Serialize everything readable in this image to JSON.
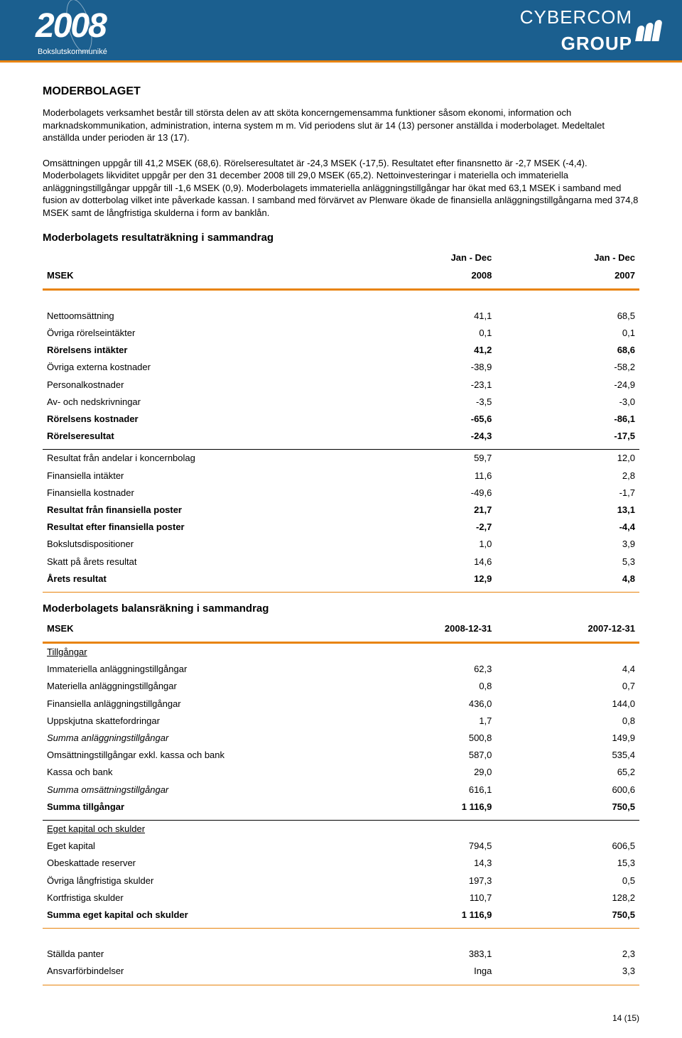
{
  "header": {
    "year": "20",
    "zero1": "0",
    "eight": "8",
    "subtitle": "Bokslutskommuniké",
    "company_a": "CYBERCOM",
    "company_b": "GROUP"
  },
  "colors": {
    "banner_bg": "#1b5f8f",
    "accent": "#e8830c",
    "text": "#000000",
    "white": "#ffffff"
  },
  "section_title": "MODERBOLAGET",
  "body_text": "Moderbolagets verksamhet består till största delen av att sköta koncerngemensamma funktioner såsom ekonomi, information och marknadskommunikation, administration, interna system m m. Vid periodens slut är 14 (13) personer anställda i moderbolaget. Medeltalet anställda under perioden är 13 (17).\n\nOmsättningen uppgår till 41,2 MSEK (68,6). Rörelseresultatet är -24,3 MSEK (-17,5). Resultatet efter finansnetto är -2,7 MSEK (-4,4). Moderbolagets likviditet uppgår per den 31 december 2008 till 29,0 MSEK (65,2). Nettoinvesteringar i materiella och immateriella anläggningstillgångar uppgår till -1,6 MSEK (0,9). Moderbolagets immateriella anläggningstillgångar har ökat med 63,1 MSEK i samband med fusion av dotterbolag vilket inte påverkade kassan. I samband med förvärvet av Plenware ökade de finansiella anläggningstillgångarna med 374,8 MSEK samt de långfristiga skulderna i form av banklån.",
  "income": {
    "title": "Moderbolagets resultaträkning i sammandrag",
    "col_unit": "MSEK",
    "period_label": "Jan - Dec",
    "col1": "2008",
    "col2": "2007",
    "rows": [
      {
        "label": "Nettoomsättning",
        "v1": "41,1",
        "v2": "68,5"
      },
      {
        "label": "Övriga rörelseintäkter",
        "v1": "0,1",
        "v2": "0,1"
      },
      {
        "label": "Rörelsens intäkter",
        "v1": "41,2",
        "v2": "68,6",
        "bold": true
      },
      {
        "label": "Övriga externa kostnader",
        "v1": "-38,9",
        "v2": "-58,2"
      },
      {
        "label": "Personalkostnader",
        "v1": "-23,1",
        "v2": "-24,9"
      },
      {
        "label": "Av- och nedskrivningar",
        "v1": "-3,5",
        "v2": "-3,0"
      },
      {
        "label": "Rörelsens kostnader",
        "v1": "-65,6",
        "v2": "-86,1",
        "bold": true
      },
      {
        "label": "Rörelseresultat",
        "v1": "-24,3",
        "v2": "-17,5",
        "bold": true,
        "rule_after": "black"
      },
      {
        "label": "Resultat från andelar i koncernbolag",
        "v1": "59,7",
        "v2": "12,0"
      },
      {
        "label": "Finansiella intäkter",
        "v1": "11,6",
        "v2": "2,8"
      },
      {
        "label": "Finansiella kostnader",
        "v1": "-49,6",
        "v2": "-1,7"
      },
      {
        "label": "Resultat från finansiella poster",
        "v1": "21,7",
        "v2": "13,1",
        "bold": true
      },
      {
        "label": "Resultat efter finansiella poster",
        "v1": "-2,7",
        "v2": "-4,4",
        "bold": true
      },
      {
        "label": "Bokslutsdispositioner",
        "v1": "1,0",
        "v2": "3,9"
      },
      {
        "label": "Skatt på årets resultat",
        "v1": "14,6",
        "v2": "5,3"
      },
      {
        "label": "Årets resultat",
        "v1": "12,9",
        "v2": "4,8",
        "bold": true
      }
    ]
  },
  "balance": {
    "title": "Moderbolagets balansräkning i sammandrag",
    "col_unit": "MSEK",
    "col1": "2008-12-31",
    "col2": "2007-12-31",
    "section1_label": "Tillgångar",
    "rows1": [
      {
        "label": "Immateriella anläggningstillgångar",
        "v1": "62,3",
        "v2": "4,4"
      },
      {
        "label": "Materiella anläggningstillgångar",
        "v1": "0,8",
        "v2": "0,7"
      },
      {
        "label": "Finansiella anläggningstillgångar",
        "v1": "436,0",
        "v2": "144,0"
      },
      {
        "label": "Uppskjutna skattefordringar",
        "v1": "1,7",
        "v2": "0,8"
      },
      {
        "label": "Summa anläggningstillgångar",
        "v1": "500,8",
        "v2": "149,9",
        "italic": true
      },
      {
        "label": "Omsättningstillgångar exkl. kassa och bank",
        "v1": "587,0",
        "v2": "535,4"
      },
      {
        "label": "Kassa och bank",
        "v1": "29,0",
        "v2": "65,2"
      },
      {
        "label": "Summa omsättningstillgångar",
        "v1": "616,1",
        "v2": "600,6",
        "italic": true
      },
      {
        "label": "Summa tillgångar",
        "v1": "1 116,9",
        "v2": "750,5",
        "bold": true,
        "rule_after": "black"
      }
    ],
    "section2_label": "Eget kapital och skulder",
    "rows2": [
      {
        "label": "Eget kapital",
        "v1": "794,5",
        "v2": "606,5"
      },
      {
        "label": "Obeskattade reserver",
        "v1": "14,3",
        "v2": "15,3"
      },
      {
        "label": "Övriga långfristiga skulder",
        "v1": "197,3",
        "v2": "0,5"
      },
      {
        "label": "Kortfristiga skulder",
        "v1": "110,7",
        "v2": "128,2"
      },
      {
        "label": "Summa eget kapital och skulder",
        "v1": "1 116,9",
        "v2": "750,5",
        "bold": true
      }
    ],
    "rows3": [
      {
        "label": "Ställda panter",
        "v1": "383,1",
        "v2": "2,3"
      },
      {
        "label": "Ansvarförbindelser",
        "v1": "Inga",
        "v2": "3,3"
      }
    ]
  },
  "footer": "14 (15)"
}
